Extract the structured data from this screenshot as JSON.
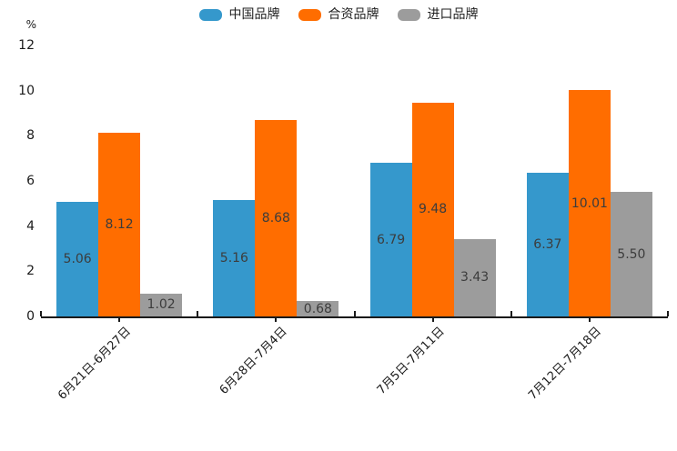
{
  "chart_data": {
    "type": "bar",
    "title": "",
    "unit_label": "%",
    "categories": [
      "6月21日-6月27日",
      "6月28日-7月4日",
      "7月5日-7月11日",
      "7月12日-7月18日"
    ],
    "series": [
      {
        "name": "中国品牌",
        "color": "#3598CC",
        "values": [
          5.06,
          5.16,
          6.79,
          6.37
        ]
      },
      {
        "name": "合资品牌",
        "color": "#FF6D00",
        "values": [
          8.12,
          8.68,
          9.48,
          10.01
        ]
      },
      {
        "name": "进口品牌",
        "color": "#9C9C9C",
        "values": [
          1.02,
          0.68,
          3.43,
          5.5
        ]
      }
    ],
    "value_labels": [
      "5.06",
      "8.12",
      "1.02",
      "5.16",
      "8.68",
      "0.68",
      "6.79",
      "9.48",
      "3.43",
      "6.37",
      "10.01",
      "5.50"
    ],
    "ylim": [
      0,
      12
    ],
    "yticks": [
      0,
      2,
      4,
      6,
      8,
      10,
      12
    ],
    "grid": false,
    "legend_position": "top",
    "value_label_position": "inside-center",
    "axis_color": "#1a1a1a"
  }
}
